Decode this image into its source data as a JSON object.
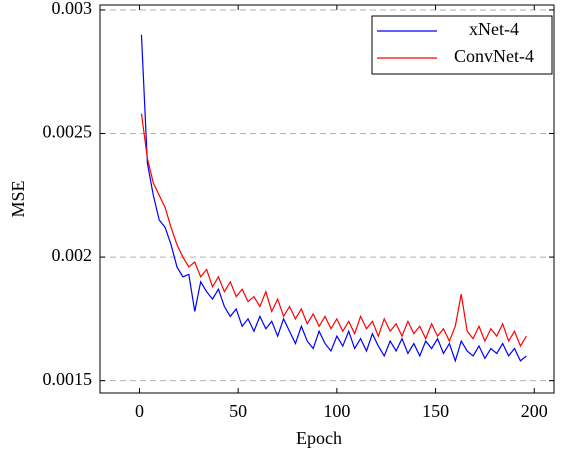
{
  "chart_data": {
    "type": "line",
    "xlabel": "Epoch",
    "ylabel": "MSE",
    "x": [
      1,
      4,
      7,
      10,
      13,
      16,
      19,
      22,
      25,
      28,
      31,
      34,
      37,
      40,
      43,
      46,
      49,
      52,
      55,
      58,
      61,
      64,
      67,
      70,
      73,
      76,
      79,
      82,
      85,
      88,
      91,
      94,
      97,
      100,
      103,
      106,
      109,
      112,
      115,
      118,
      121,
      124,
      127,
      130,
      133,
      136,
      139,
      142,
      145,
      148,
      151,
      154,
      157,
      160,
      163,
      166,
      169,
      172,
      175,
      178,
      181,
      184,
      187,
      190,
      193,
      196
    ],
    "series": [
      {
        "name": "xNet-4",
        "color": "#0000ff",
        "values": [
          0.0029,
          0.00238,
          0.00225,
          0.00215,
          0.00212,
          0.00205,
          0.00196,
          0.00192,
          0.00193,
          0.00178,
          0.0019,
          0.00186,
          0.00183,
          0.00187,
          0.0018,
          0.00176,
          0.00179,
          0.00172,
          0.00175,
          0.0017,
          0.00176,
          0.00171,
          0.00174,
          0.00168,
          0.00175,
          0.0017,
          0.00165,
          0.00172,
          0.00166,
          0.00163,
          0.0017,
          0.00165,
          0.00162,
          0.00168,
          0.00164,
          0.0017,
          0.00163,
          0.00167,
          0.00162,
          0.00169,
          0.00164,
          0.0016,
          0.00166,
          0.00162,
          0.00167,
          0.00161,
          0.00165,
          0.0016,
          0.00166,
          0.00163,
          0.00167,
          0.00161,
          0.00165,
          0.00158,
          0.00166,
          0.00162,
          0.0016,
          0.00164,
          0.00159,
          0.00163,
          0.00161,
          0.00165,
          0.0016,
          0.00163,
          0.00158,
          0.0016
        ]
      },
      {
        "name": "ConvNet-4",
        "color": "#ff0000",
        "values": [
          0.00258,
          0.0024,
          0.0023,
          0.00225,
          0.0022,
          0.00212,
          0.00205,
          0.002,
          0.00196,
          0.00198,
          0.00192,
          0.00195,
          0.00188,
          0.00192,
          0.00186,
          0.0019,
          0.00184,
          0.00187,
          0.00182,
          0.00184,
          0.0018,
          0.00186,
          0.00178,
          0.00183,
          0.00176,
          0.0018,
          0.00175,
          0.00179,
          0.00173,
          0.00177,
          0.00172,
          0.00176,
          0.00171,
          0.00175,
          0.0017,
          0.00174,
          0.00169,
          0.00176,
          0.00171,
          0.00174,
          0.00168,
          0.00175,
          0.0017,
          0.00173,
          0.00168,
          0.00174,
          0.00169,
          0.00172,
          0.00167,
          0.00173,
          0.00168,
          0.00171,
          0.00166,
          0.00172,
          0.00185,
          0.0017,
          0.00167,
          0.00172,
          0.00166,
          0.00171,
          0.00168,
          0.00173,
          0.00166,
          0.0017,
          0.00164,
          0.00168
        ]
      }
    ],
    "xlim": [
      -20,
      210
    ],
    "ylim": [
      0.00145,
      0.00302
    ],
    "xticks": [
      0,
      50,
      100,
      150,
      200
    ],
    "yticks": [
      0.0015,
      0.002,
      0.0025,
      0.003
    ],
    "grid": true,
    "legend": "upper right"
  }
}
